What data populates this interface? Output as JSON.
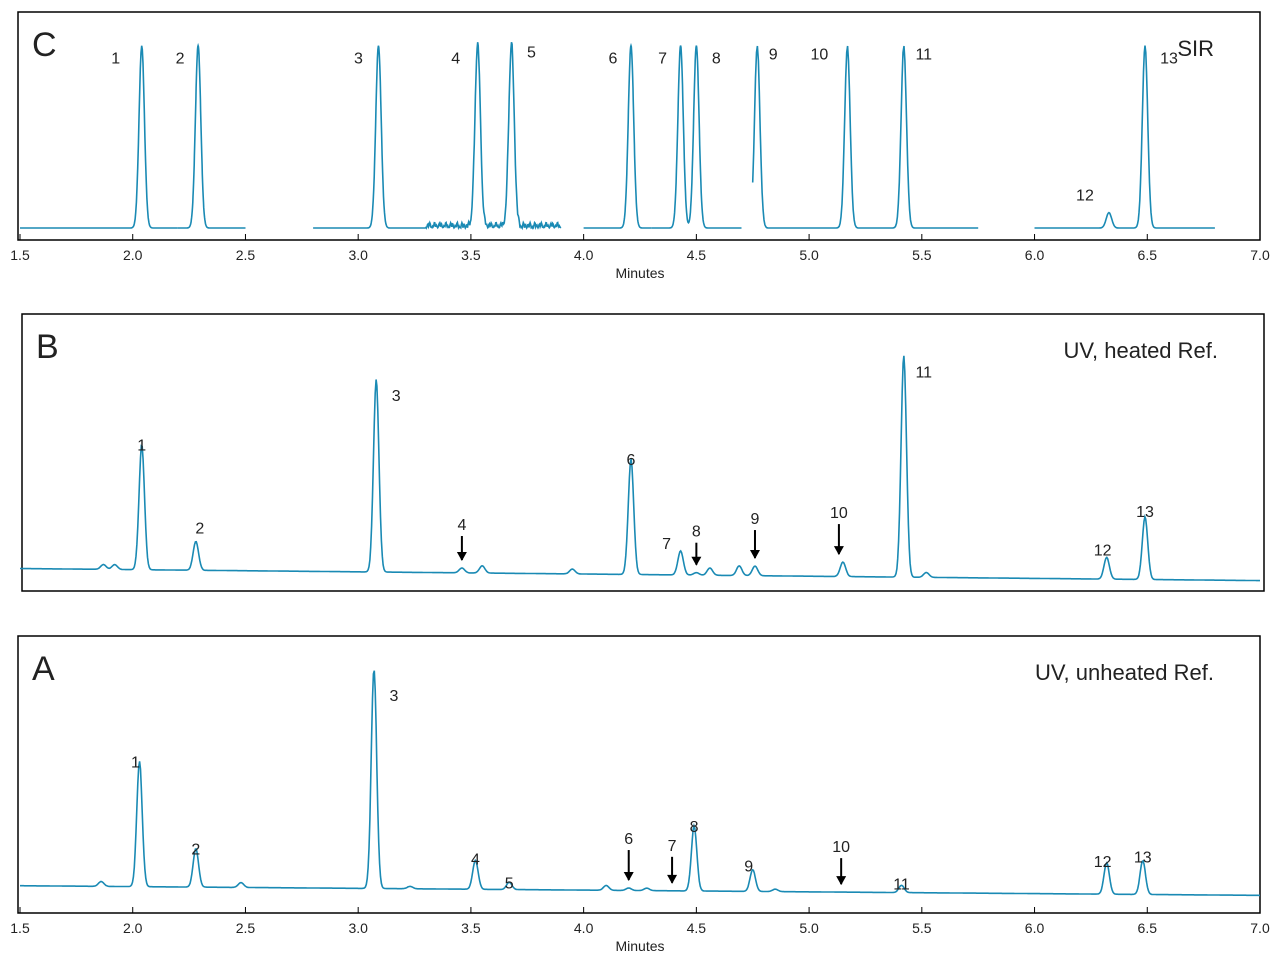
{
  "colors": {
    "trace": "#1a8ab4",
    "frame": "#000000",
    "text": "#222222"
  },
  "axis": {
    "ticks": [
      "1.5",
      "2.0",
      "2.5",
      "3.0",
      "3.5",
      "4.0",
      "4.5",
      "5.0",
      "5.5",
      "6.0",
      "6.5",
      "7.0"
    ],
    "xlabel": "Minutes",
    "xlim": [
      1.5,
      7.0
    ]
  },
  "chart_data": [
    {
      "type": "line",
      "panel_letter": "C",
      "title": "SIR",
      "xlabel": "Minutes",
      "x_range": [
        1.5,
        7.0
      ],
      "show_axis": true,
      "peaks": [
        {
          "label": "1",
          "rt": 2.04,
          "height": 0.95,
          "label_dx": -26,
          "label_dy": 0
        },
        {
          "label": "2",
          "rt": 2.29,
          "height": 0.95,
          "label_dx": -18,
          "label_dy": 0
        },
        {
          "label": "3",
          "rt": 3.09,
          "height": 0.95,
          "label_dx": -20,
          "label_dy": 0
        },
        {
          "label": "4",
          "rt": 3.53,
          "height": 0.95,
          "label_dx": -22,
          "label_dy": 0
        },
        {
          "label": "5",
          "rt": 3.68,
          "height": 0.95,
          "label_dx": 20,
          "label_dy": -6
        },
        {
          "label": "6",
          "rt": 4.21,
          "height": 0.95,
          "label_dx": -18,
          "label_dy": 0
        },
        {
          "label": "7",
          "rt": 4.43,
          "height": 0.95,
          "label_dx": -18,
          "label_dy": 0
        },
        {
          "label": "8",
          "rt": 4.5,
          "height": 0.95,
          "label_dx": 20,
          "label_dy": 0
        },
        {
          "label": "9",
          "rt": 4.77,
          "height": 0.95,
          "label_dx": 16,
          "label_dy": -4
        },
        {
          "label": "10",
          "rt": 5.17,
          "height": 0.95,
          "label_dx": -28,
          "label_dy": -4
        },
        {
          "label": "11",
          "rt": 5.42,
          "height": 0.95,
          "label_dx": 20,
          "label_dy": -4
        },
        {
          "label": "12",
          "rt": 6.33,
          "height": 0.08,
          "label_dx": -24,
          "label_dy": -30
        },
        {
          "label": "13",
          "rt": 6.49,
          "height": 0.95,
          "label_dx": 24,
          "label_dy": 0
        }
      ],
      "segments": [
        [
          1.5,
          2.2
        ],
        [
          2.2,
          2.5
        ],
        [
          2.8,
          3.3
        ],
        [
          3.3,
          3.9
        ],
        [
          4.0,
          4.3
        ],
        [
          4.3,
          4.7
        ],
        [
          4.75,
          5.75
        ],
        [
          6.0,
          6.8
        ]
      ]
    },
    {
      "type": "line",
      "panel_letter": "B",
      "title": "UV, heated Ref.",
      "x_range": [
        1.5,
        7.0
      ],
      "show_axis": false,
      "baseline": [
        0.06,
        0.01
      ],
      "peaks": [
        {
          "label": "1",
          "rt": 2.04,
          "height": 0.52,
          "label_dx": 0,
          "label_dy": -12
        },
        {
          "label": "2",
          "rt": 2.28,
          "height": 0.12,
          "label_dx": 4,
          "label_dy": -26
        },
        {
          "label": "3",
          "rt": 3.08,
          "height": 0.8,
          "label_dx": 20,
          "label_dy": 4
        },
        {
          "label": "4",
          "rt": 3.46,
          "height": 0.02,
          "label_dx": 0,
          "label_dy": -56,
          "arrow": true
        },
        {
          "label": "",
          "rt": 3.55,
          "height": 0.03
        },
        {
          "label": "6",
          "rt": 4.21,
          "height": 0.48,
          "label_dx": 0,
          "label_dy": -12
        },
        {
          "label": "7",
          "rt": 4.43,
          "height": 0.1,
          "label_dx": -14,
          "label_dy": -20
        },
        {
          "label": "8",
          "rt": 4.5,
          "height": 0.01,
          "label_dx": 0,
          "label_dy": -54,
          "arrow": true
        },
        {
          "label": "",
          "rt": 4.56,
          "height": 0.03
        },
        {
          "label": "",
          "rt": 4.69,
          "height": 0.04
        },
        {
          "label": "9",
          "rt": 4.76,
          "height": 0.04,
          "label_dx": 0,
          "label_dy": -60,
          "arrow": true
        },
        {
          "label": "10",
          "rt": 5.15,
          "height": 0.06,
          "label_dx": -4,
          "label_dy": -62,
          "arrow": true
        },
        {
          "label": "11",
          "rt": 5.42,
          "height": 0.92,
          "label_dx": 20,
          "label_dy": 4
        },
        {
          "label": "",
          "rt": 5.52,
          "height": 0.02
        },
        {
          "label": "12",
          "rt": 6.32,
          "height": 0.09,
          "label_dx": -4,
          "label_dy": -20
        },
        {
          "label": "13",
          "rt": 6.49,
          "height": 0.26,
          "label_dx": 0,
          "label_dy": -18
        },
        {
          "label": "",
          "rt": 1.87,
          "height": 0.02
        },
        {
          "label": "",
          "rt": 1.92,
          "height": 0.02
        },
        {
          "label": "",
          "rt": 3.95,
          "height": 0.02
        }
      ]
    },
    {
      "type": "line",
      "panel_letter": "A",
      "title": "UV, unheated Ref.",
      "xlabel": "Minutes",
      "x_range": [
        1.5,
        7.0
      ],
      "show_axis": true,
      "baseline": [
        0.08,
        0.04
      ],
      "peaks": [
        {
          "label": "1",
          "rt": 2.03,
          "height": 0.52,
          "label_dx": -4,
          "label_dy": -12
        },
        {
          "label": "2",
          "rt": 2.28,
          "height": 0.16,
          "label_dx": 0,
          "label_dy": -12
        },
        {
          "label": "3",
          "rt": 3.07,
          "height": 0.91,
          "label_dx": 20,
          "label_dy": 14
        },
        {
          "label": "4",
          "rt": 3.52,
          "height": 0.12,
          "label_dx": 0,
          "label_dy": -14
        },
        {
          "label": "5",
          "rt": 3.67,
          "height": 0.03,
          "label_dx": 0,
          "label_dy": -12
        },
        {
          "label": "6",
          "rt": 4.2,
          "height": 0.01,
          "label_dx": 0,
          "label_dy": -62,
          "arrow": true
        },
        {
          "label": "7",
          "rt": 4.41,
          "height": 0.0,
          "label_dx": -4,
          "label_dy": -58,
          "arrow": true
        },
        {
          "label": "8",
          "rt": 4.49,
          "height": 0.27,
          "label_dx": 0,
          "label_dy": -12
        },
        {
          "label": "9",
          "rt": 4.75,
          "height": 0.09,
          "label_dx": -4,
          "label_dy": -16
        },
        {
          "label": "10",
          "rt": 5.16,
          "height": 0.0,
          "label_dx": -4,
          "label_dy": -58,
          "arrow": true
        },
        {
          "label": "11",
          "rt": 5.41,
          "height": 0.03,
          "label_dx": 0,
          "label_dy": -14
        },
        {
          "label": "12",
          "rt": 6.32,
          "height": 0.13,
          "label_dx": -4,
          "label_dy": -14
        },
        {
          "label": "13",
          "rt": 6.48,
          "height": 0.14,
          "label_dx": 0,
          "label_dy": -16
        },
        {
          "label": "",
          "rt": 1.86,
          "height": 0.02
        },
        {
          "label": "",
          "rt": 2.48,
          "height": 0.02
        },
        {
          "label": "",
          "rt": 3.23,
          "height": 0.01
        },
        {
          "label": "",
          "rt": 4.1,
          "height": 0.02
        },
        {
          "label": "",
          "rt": 4.28,
          "height": 0.01
        },
        {
          "label": "",
          "rt": 4.85,
          "height": 0.01
        }
      ]
    }
  ]
}
